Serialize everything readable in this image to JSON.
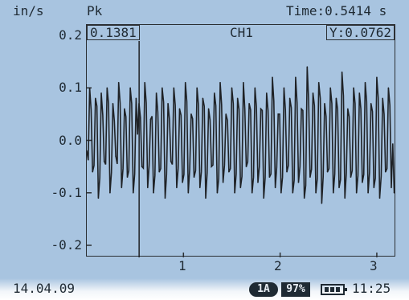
{
  "header": {
    "unit": "in/s",
    "mode": "Pk",
    "time_readout": "Time:0.5414 s"
  },
  "channel": "CH1",
  "cursor": {
    "x_readout": "0.1381",
    "y_readout": "Y:0.0762",
    "x_value": 0.5414
  },
  "y_axis_labels": [
    "0.2",
    "0.1",
    "0.0",
    "-0.1",
    "-0.2"
  ],
  "x_axis_labels": [
    "1",
    "2",
    "3"
  ],
  "status_bar": {
    "date": "14.04.09",
    "channel_badge": "1A",
    "percent_badge": "97%",
    "clock": "11:25"
  },
  "chart_data": {
    "type": "line",
    "title": "CH1",
    "xlabel": "",
    "ylabel": "in/s",
    "xlim": [
      0,
      3.2
    ],
    "ylim": [
      -0.25,
      0.2
    ],
    "x_ticks": [
      1,
      2,
      3
    ],
    "y_ticks": [
      0.2,
      0.1,
      0.0,
      -0.1,
      -0.2
    ],
    "series": [
      {
        "x": [
          0.0,
          0.03,
          0.06,
          0.09,
          0.12,
          0.15,
          0.18,
          0.21,
          0.24,
          0.27,
          0.3,
          0.33,
          0.36,
          0.39,
          0.42,
          0.45,
          0.48,
          0.51,
          0.54,
          0.57,
          0.6,
          0.63,
          0.66,
          0.69,
          0.72,
          0.75,
          0.78,
          0.81,
          0.84,
          0.87,
          0.9,
          0.93,
          0.96,
          0.99,
          1.02,
          1.05,
          1.08,
          1.11,
          1.14,
          1.17,
          1.2,
          1.23,
          1.26,
          1.29,
          1.32,
          1.35,
          1.38,
          1.41,
          1.44,
          1.47,
          1.5,
          1.53,
          1.56,
          1.59,
          1.62,
          1.65,
          1.68,
          1.71,
          1.74,
          1.77,
          1.8,
          1.83,
          1.86,
          1.89,
          1.92,
          1.95,
          1.98,
          2.01,
          2.04,
          2.07,
          2.1,
          2.13,
          2.16,
          2.19,
          2.22,
          2.25,
          2.28,
          2.31,
          2.34,
          2.37,
          2.4,
          2.43,
          2.46,
          2.49,
          2.52,
          2.55,
          2.58,
          2.61,
          2.64,
          2.67,
          2.7,
          2.73,
          2.76,
          2.79,
          2.82,
          2.85,
          2.88,
          2.91,
          2.94,
          2.97,
          3.0,
          3.03,
          3.06,
          3.09,
          3.12,
          3.15,
          3.18
        ],
        "y": [
          -0.02,
          0.1,
          -0.06,
          0.08,
          -0.11,
          0.09,
          -0.04,
          0.1,
          -0.1,
          0.07,
          -0.03,
          0.11,
          -0.09,
          0.06,
          -0.07,
          0.1,
          -0.1,
          0.08,
          0.07,
          -0.05,
          0.11,
          -0.09,
          0.04,
          -0.1,
          0.09,
          -0.06,
          0.1,
          -0.11,
          0.07,
          -0.04,
          0.1,
          -0.09,
          0.06,
          -0.08,
          0.11,
          -0.1,
          0.05,
          -0.07,
          0.1,
          -0.09,
          0.08,
          -0.11,
          0.06,
          -0.05,
          0.09,
          -0.1,
          0.11,
          -0.08,
          0.05,
          -0.06,
          0.1,
          -0.1,
          0.08,
          -0.09,
          0.11,
          -0.05,
          0.07,
          -0.1,
          0.1,
          -0.08,
          0.06,
          -0.11,
          0.09,
          -0.07,
          0.12,
          -0.09,
          0.05,
          -0.1,
          0.1,
          -0.06,
          0.08,
          -0.1,
          0.12,
          -0.08,
          0.06,
          -0.11,
          0.14,
          -0.07,
          0.09,
          -0.1,
          0.11,
          -0.12,
          0.07,
          -0.06,
          0.1,
          -0.1,
          0.08,
          -0.09,
          0.13,
          -0.11,
          0.06,
          -0.07,
          0.1,
          -0.1,
          0.09,
          -0.08,
          0.11,
          -0.1,
          0.07,
          -0.09,
          0.12,
          -0.11,
          0.08,
          -0.06,
          0.1,
          -0.09,
          -0.1
        ]
      }
    ]
  }
}
